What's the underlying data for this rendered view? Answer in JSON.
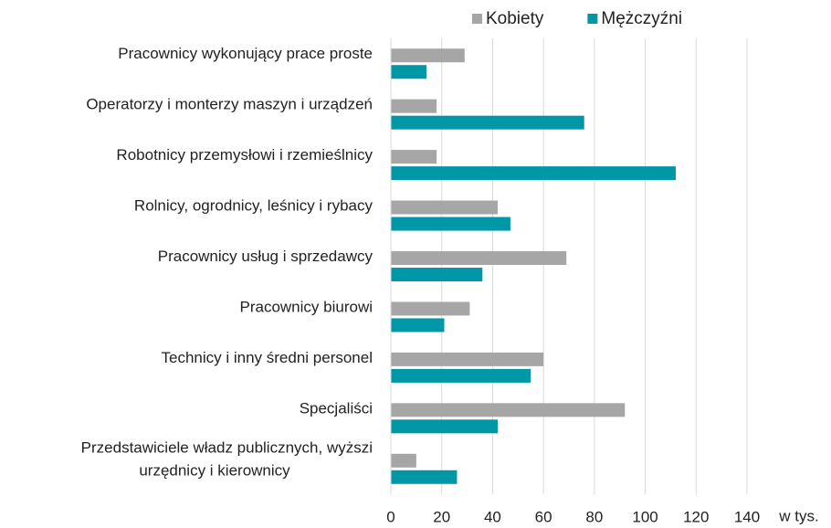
{
  "chart_data": {
    "type": "bar",
    "orientation": "horizontal",
    "categories": [
      "Pracownicy wykonujący prace proste",
      "Operatorzy i monterzy maszyn i urządzeń",
      "Robotnicy przemysłowi i rzemieślnicy",
      "Rolnicy, ogrodnicy, leśnicy i rybacy",
      "Pracownicy usług i sprzedawcy",
      "Pracownicy biurowi",
      "Technicy i inny średni personel",
      "Specjaliści",
      "Przedstawiciele władz publicznych, wyższi\nurzędnicy i kierownicy"
    ],
    "series": [
      {
        "name": "Kobiety",
        "color": "#a6a6a6",
        "values": [
          29,
          18,
          18,
          42,
          69,
          31,
          60,
          92,
          10
        ]
      },
      {
        "name": "Mężczyźni",
        "color": "#0097a7",
        "values": [
          14,
          76,
          112,
          47,
          36,
          21,
          55,
          42,
          26
        ]
      }
    ],
    "x_label": "w tys.",
    "xlim": [
      0,
      140
    ],
    "xticks": [
      0,
      20,
      40,
      60,
      80,
      100,
      120,
      140
    ],
    "grid": true,
    "legend": "top"
  }
}
